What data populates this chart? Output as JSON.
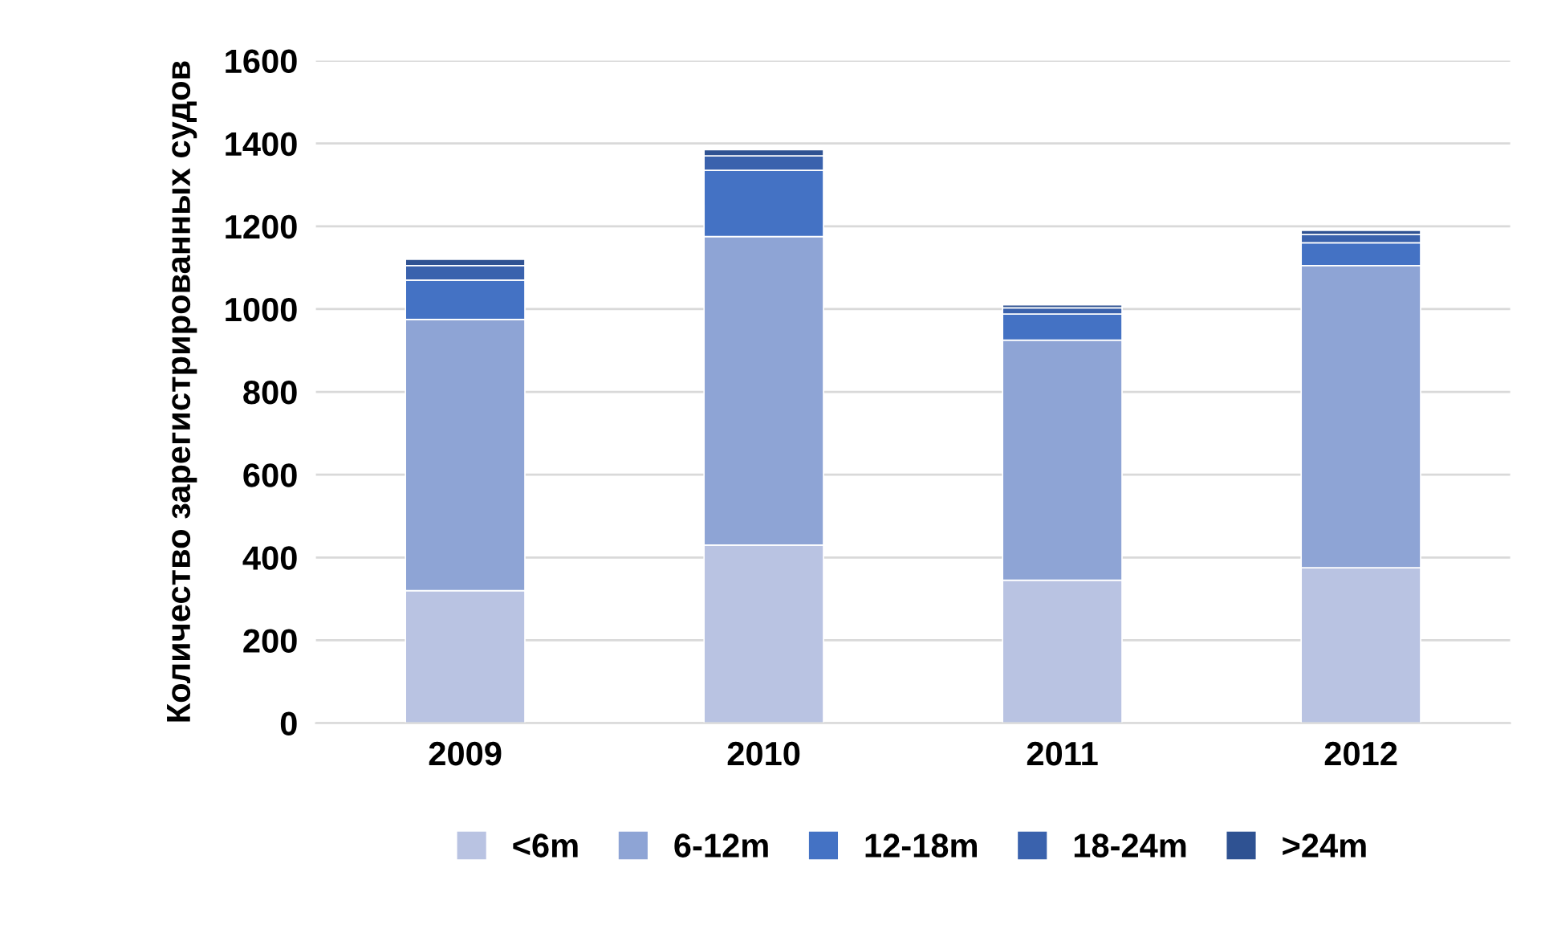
{
  "chart_data": {
    "type": "bar",
    "stacked": true,
    "ylabel": "Количество зарегистрированных судов",
    "categories": [
      "2009",
      "2010",
      "2011",
      "2012"
    ],
    "series": [
      {
        "name": "<6m",
        "color": "#b9c3e2",
        "values": [
          320,
          430,
          345,
          375
        ]
      },
      {
        "name": "6-12m",
        "color": "#8ea4d5",
        "values": [
          655,
          745,
          580,
          730
        ]
      },
      {
        "name": "12-18m",
        "color": "#4472c4",
        "values": [
          95,
          160,
          63,
          55
        ]
      },
      {
        "name": "18-24m",
        "color": "#3a62ad",
        "values": [
          35,
          35,
          15,
          20
        ]
      },
      {
        "name": ">24m",
        "color": "#2f5292",
        "values": [
          15,
          15,
          7,
          10
        ]
      }
    ],
    "ylim": [
      0,
      1600
    ],
    "yticks": [
      0,
      200,
      400,
      600,
      800,
      1000,
      1200,
      1400,
      1600
    ],
    "grid": "y",
    "legend": "bottom"
  }
}
